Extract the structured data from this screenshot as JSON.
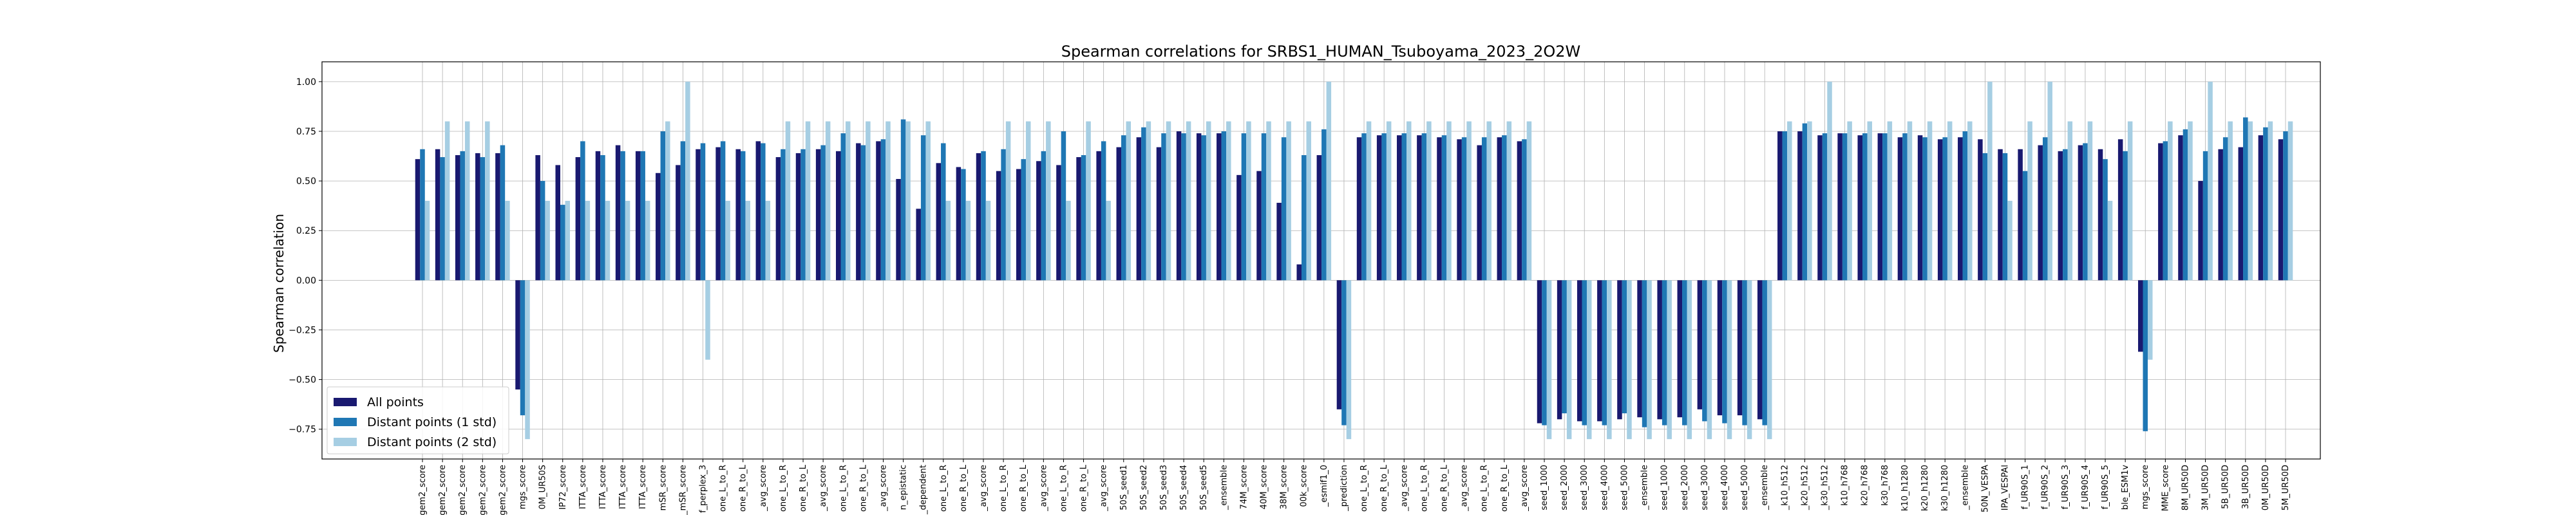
{
  "chart_data": {
    "type": "bar",
    "title": "Spearman correlations for SRBS1_HUMAN_Tsuboyama_2023_2O2W",
    "xlabel": "",
    "ylabel": "Spearman correlation",
    "ylim": [
      -0.9,
      1.1
    ],
    "yticks": [
      "1.00",
      "0.75",
      "0.50",
      "0.25",
      "0.00",
      "−0.25",
      "−0.50",
      "−0.75"
    ],
    "ytick_values": [
      1.0,
      0.75,
      0.5,
      0.25,
      0.0,
      -0.25,
      -0.5,
      -0.75
    ],
    "grid": true,
    "legend_position": "lower-left",
    "colors": [
      "#191970",
      "#1f77b4",
      "#a6cee3"
    ],
    "categories": [
      "gem2_score",
      "gem2_score",
      "gem2_score",
      "gem2_score",
      "gem2_score",
      "mgs_score",
      "0M_UR50S",
      "IP72_score",
      "ITTA_score",
      "ITTA_score",
      "ITTA_score",
      "ITTA_score",
      "mSR_score",
      "_mSR_score",
      "f_perplex_3",
      "one_L_to_R",
      "one_R_to_L",
      "_avg_score",
      "one_L_to_R",
      "one_R_to_L",
      "_avg_score",
      "one_L_to_R",
      "one_R_to_L",
      "_avg_score",
      "n_epistatic",
      "_dependent",
      "one_L_to_R",
      "one_R_to_L",
      "_avg_score",
      "one_L_to_R",
      "one_R_to_L",
      "_avg_score",
      "one_L_to_R",
      "one_R_to_L",
      "_avg_score",
      "50S_seed1",
      "50S_seed2",
      "50S_seed3",
      "50S_seed4",
      "50S_seed5",
      "_ensemble",
      "74M_score",
      "40M_score",
      "38M_score",
      "00k_score",
      "_esmif1_0",
      "_prediction",
      "one_L_to_R",
      "one_R_to_L",
      "_avg_score",
      "one_L_to_R",
      "one_R_to_L",
      "_avg_score",
      "one_L_to_R",
      "one_R_to_L",
      "_avg_score",
      "seed_1000",
      "seed_2000",
      "seed_3000",
      "seed_4000",
      "seed_5000",
      "_ensemble",
      "seed_1000",
      "seed_2000",
      "seed_3000",
      "seed_4000",
      "seed_5000",
      "_ensemble",
      "_k10_h512",
      "_k20_h512",
      "_k30_h512",
      "k10_h768",
      "k20_h768",
      "k30_h768",
      "k10_h1280",
      "k20_h1280",
      "k30_h1280",
      "_ensemble",
      "50N_VESPA",
      "IPA_VESPAl",
      "f_UR90S_1",
      "f_UR90S_2",
      "f_UR90S_3",
      "f_UR90S_4",
      "f_UR90S_5",
      "ble_ESM1v",
      "mgs_score",
      "MME_score",
      "8M_UR50D",
      "3M_UR50D",
      "5B_UR50D",
      "3B_UR50D",
      "0M_UR50D",
      "5M_UR50D"
    ],
    "series": [
      {
        "name": "All points",
        "values": [
          0.61,
          0.66,
          0.63,
          0.64,
          0.64,
          -0.55,
          0.63,
          0.58,
          0.62,
          0.65,
          0.68,
          0.65,
          0.54,
          0.58,
          0.66,
          0.67,
          0.66,
          0.7,
          0.62,
          0.64,
          0.66,
          0.65,
          0.69,
          0.7,
          0.51,
          0.36,
          0.59,
          0.57,
          0.64,
          0.55,
          0.56,
          0.6,
          0.58,
          0.62,
          0.65,
          0.67,
          0.72,
          0.67,
          0.75,
          0.74,
          0.74,
          0.53,
          0.55,
          0.39,
          0.08,
          0.63,
          -0.65,
          0.72,
          0.73,
          0.73,
          0.73,
          0.72,
          0.71,
          0.68,
          0.72,
          0.7,
          -0.72,
          -0.7,
          -0.71,
          -0.71,
          -0.7,
          -0.69,
          -0.7,
          -0.69,
          -0.65,
          -0.68,
          -0.68,
          -0.7,
          0.75,
          0.75,
          0.73,
          0.74,
          0.73,
          0.74,
          0.72,
          0.73,
          0.71,
          0.72,
          0.71,
          0.66,
          0.66,
          0.68,
          0.65,
          0.68,
          0.66,
          0.71,
          -0.36,
          0.69,
          0.73,
          0.5,
          0.66,
          0.67,
          0.73,
          0.71
        ]
      },
      {
        "name": "Distant points (1 std)",
        "values": [
          0.66,
          0.62,
          0.65,
          0.62,
          0.68,
          -0.68,
          0.5,
          0.38,
          0.7,
          0.63,
          0.65,
          0.65,
          0.75,
          0.7,
          0.69,
          0.7,
          0.65,
          0.69,
          0.66,
          0.66,
          0.68,
          0.74,
          0.68,
          0.71,
          0.81,
          0.73,
          0.69,
          0.56,
          0.65,
          0.66,
          0.61,
          0.65,
          0.75,
          0.63,
          0.7,
          0.73,
          0.77,
          0.74,
          0.74,
          0.73,
          0.75,
          0.74,
          0.74,
          0.72,
          0.63,
          0.76,
          -0.73,
          0.74,
          0.74,
          0.74,
          0.74,
          0.73,
          0.72,
          0.72,
          0.73,
          0.71,
          -0.73,
          -0.67,
          -0.73,
          -0.73,
          -0.67,
          -0.74,
          -0.73,
          -0.73,
          -0.71,
          -0.72,
          -0.73,
          -0.73,
          0.75,
          0.79,
          0.74,
          0.74,
          0.74,
          0.74,
          0.74,
          0.72,
          0.72,
          0.75,
          0.64,
          0.64,
          0.55,
          0.72,
          0.66,
          0.69,
          0.61,
          0.65,
          -0.76,
          0.7,
          0.76,
          0.65,
          0.72,
          0.82,
          0.77,
          0.75
        ]
      },
      {
        "name": "Distant points (2 std)",
        "values": [
          0.4,
          0.8,
          0.8,
          0.8,
          0.4,
          -0.8,
          0.4,
          0.4,
          0.4,
          0.4,
          0.4,
          0.4,
          0.8,
          1.0,
          -0.4,
          0.4,
          0.4,
          0.4,
          0.8,
          0.8,
          0.8,
          0.8,
          0.8,
          0.8,
          0.8,
          0.8,
          0.4,
          0.4,
          0.4,
          0.8,
          0.8,
          0.8,
          0.4,
          0.8,
          0.4,
          0.8,
          0.8,
          0.8,
          0.8,
          0.8,
          0.8,
          0.8,
          0.8,
          0.8,
          0.8,
          1.0,
          -0.8,
          0.8,
          0.8,
          0.8,
          0.8,
          0.8,
          0.8,
          0.8,
          0.8,
          0.8,
          -0.8,
          -0.8,
          -0.8,
          -0.8,
          -0.8,
          -0.8,
          -0.8,
          -0.8,
          -0.8,
          -0.8,
          -0.8,
          -0.8,
          0.8,
          0.8,
          1.0,
          0.8,
          0.8,
          0.8,
          0.8,
          0.8,
          0.8,
          0.8,
          1.0,
          0.4,
          0.8,
          1.0,
          0.8,
          0.8,
          0.4,
          0.8,
          -0.4,
          0.8,
          0.8,
          1.0,
          0.8,
          0.8,
          0.8,
          0.8
        ]
      }
    ]
  }
}
